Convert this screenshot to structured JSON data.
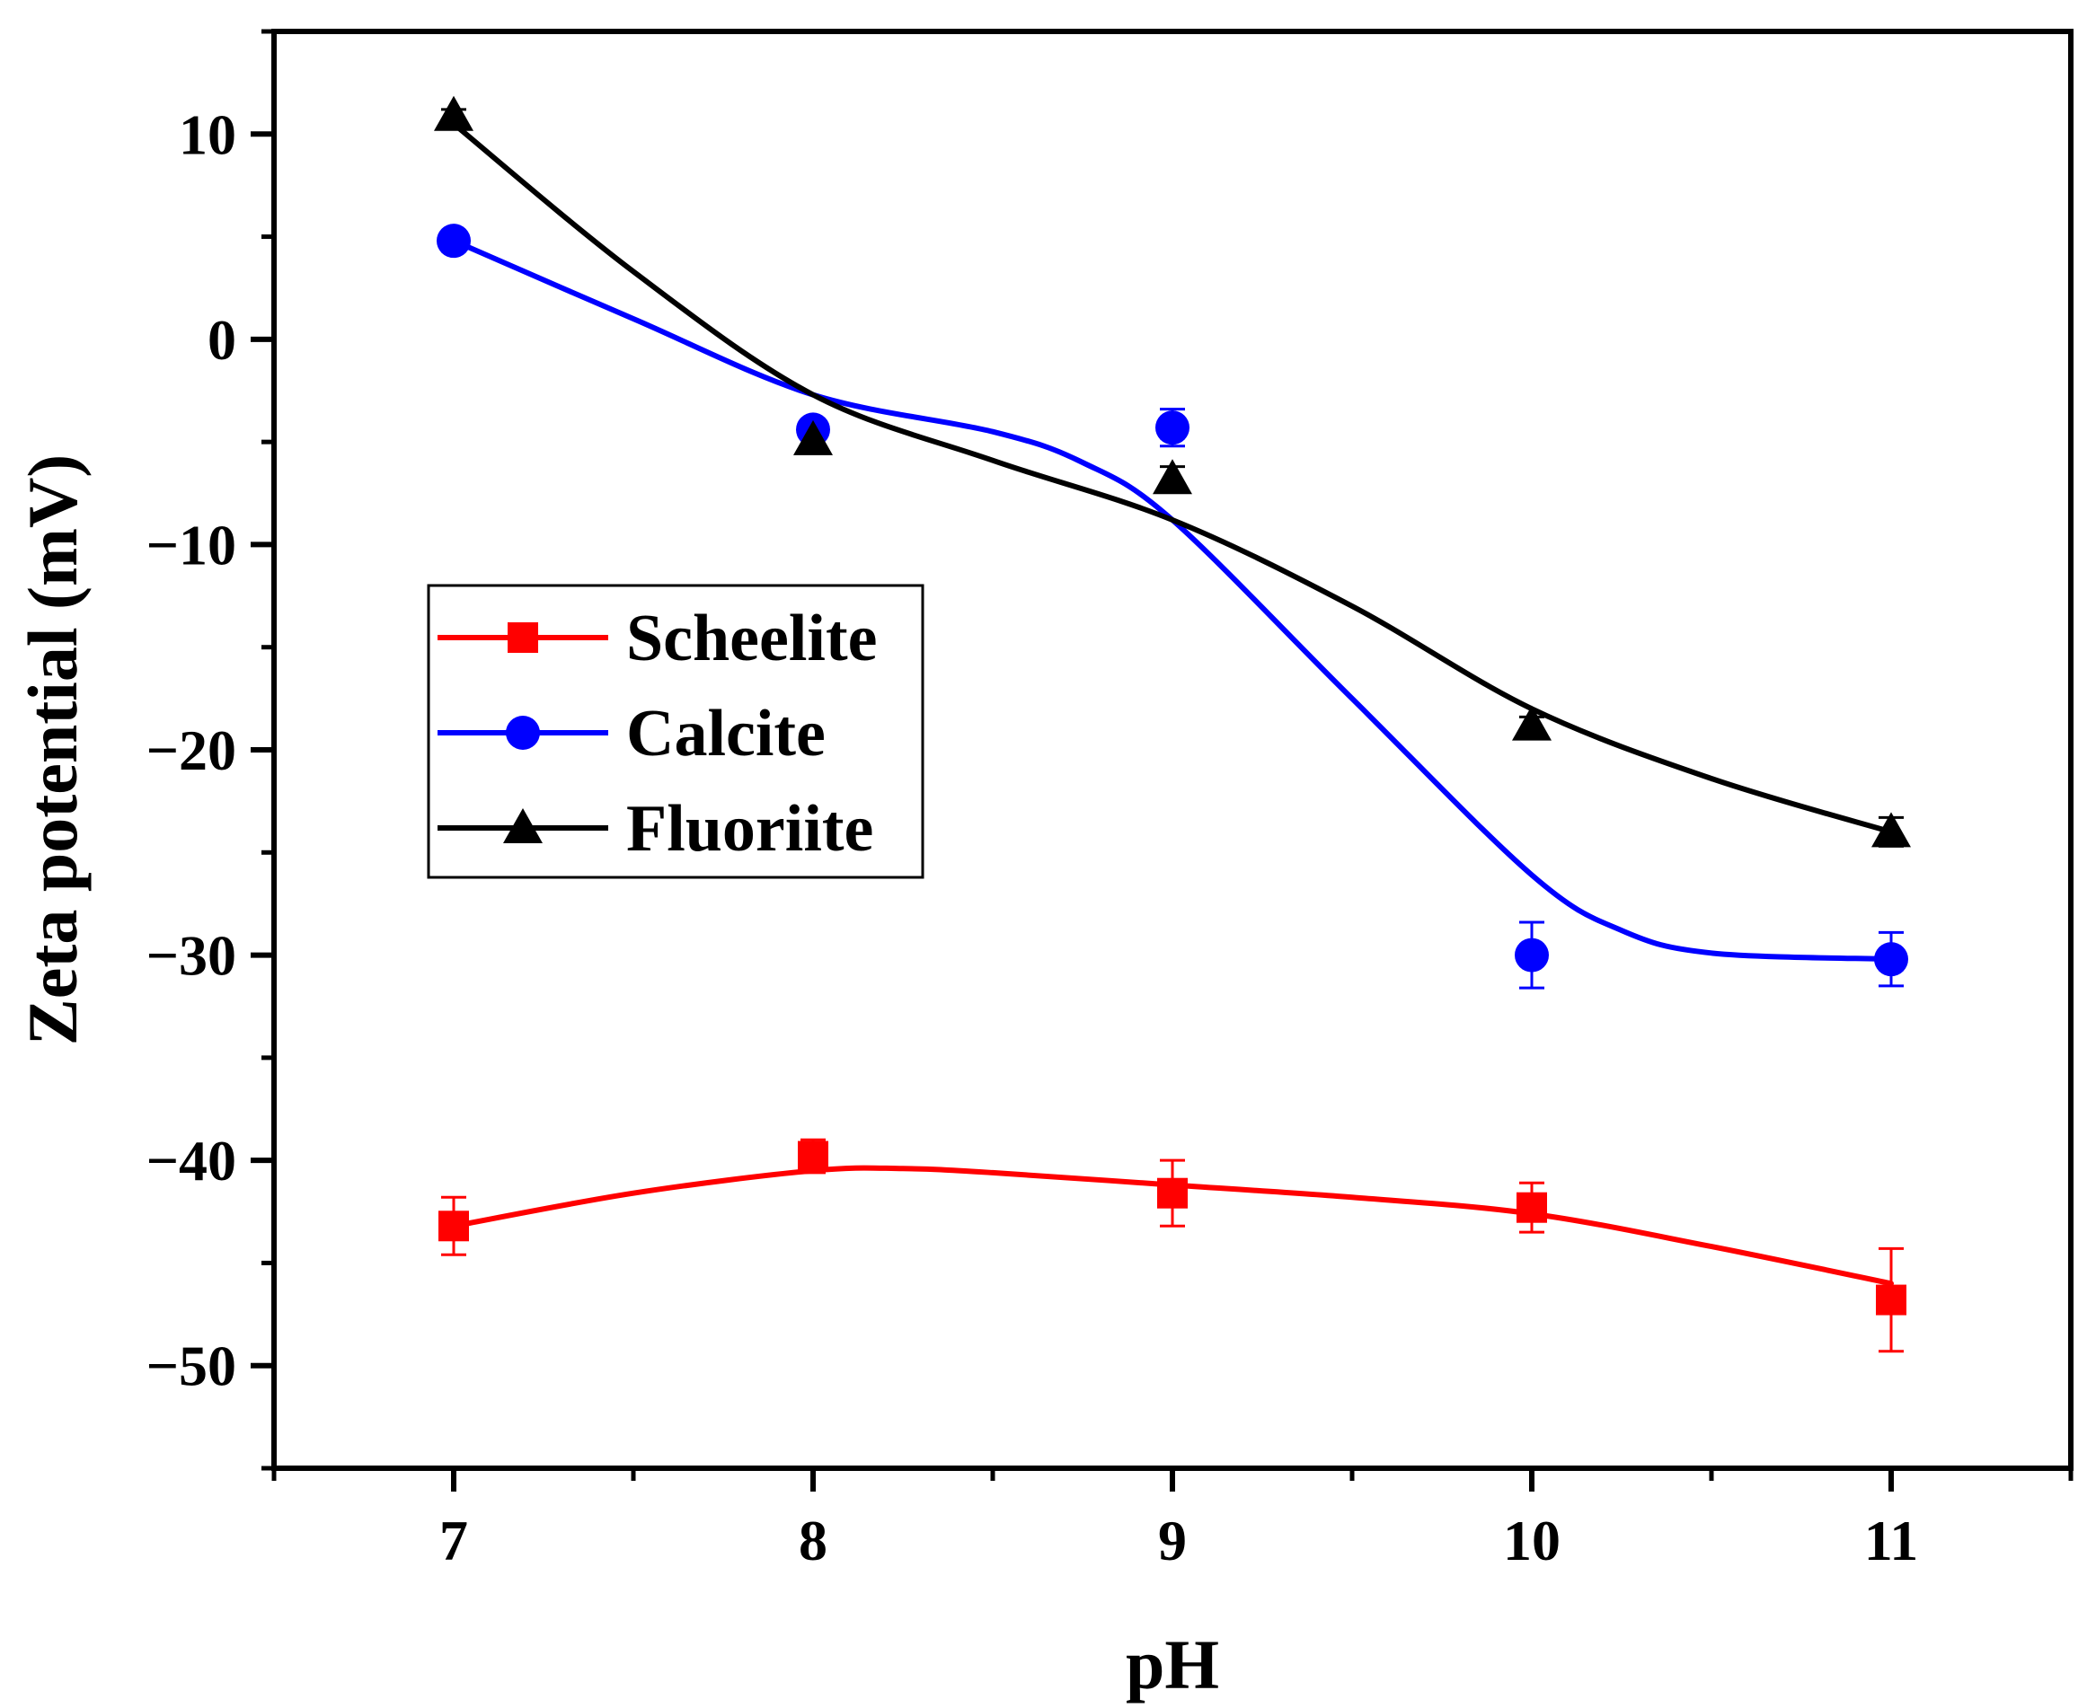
{
  "chart_data": {
    "type": "line",
    "title": "",
    "xlabel": "pH",
    "ylabel": "Zeta potential (mV)",
    "xlim": [
      6.5,
      11.5
    ],
    "ylim": [
      -55,
      15
    ],
    "xticks": [
      7,
      8,
      9,
      10,
      11
    ],
    "xtick_labels": [
      "7",
      "8",
      "9",
      "10",
      "11"
    ],
    "yticks": [
      10,
      0,
      -10,
      -20,
      -30,
      -40,
      -50
    ],
    "ytick_labels": [
      "10",
      "0",
      "−10",
      "−20",
      "−30",
      "−40",
      "−50"
    ],
    "grid": false,
    "legend_position": "center-left",
    "series": [
      {
        "name": "Scheelite",
        "color": "#ff0000",
        "marker": "square",
        "x": [
          7,
          8,
          9,
          10,
          11
        ],
        "values": [
          -43.2,
          -39.8,
          -41.6,
          -42.3,
          -46.8
        ],
        "errors": [
          1.4,
          0.8,
          1.6,
          1.2,
          2.5
        ],
        "fit_curve": [
          [
            7,
            -43.2
          ],
          [
            7.5,
            -41.6
          ],
          [
            8,
            -40.5
          ],
          [
            8.25,
            -40.4
          ],
          [
            8.5,
            -40.6
          ],
          [
            9,
            -41.2
          ],
          [
            9.5,
            -41.8
          ],
          [
            10,
            -42.6
          ],
          [
            10.5,
            -44.2
          ],
          [
            11,
            -46.0
          ]
        ]
      },
      {
        "name": "Calcite",
        "color": "#0000ff",
        "marker": "circle",
        "x": [
          7,
          8,
          9,
          10,
          11
        ],
        "values": [
          4.8,
          -4.4,
          -4.3,
          -30.0,
          -30.2
        ],
        "errors": [
          0.3,
          0.4,
          0.9,
          1.6,
          1.3
        ],
        "fit_curve": [
          [
            7,
            4.8
          ],
          [
            7.5,
            1.0
          ],
          [
            8,
            -2.7
          ],
          [
            8.5,
            -4.5
          ],
          [
            8.75,
            -6.0
          ],
          [
            9,
            -8.8
          ],
          [
            9.5,
            -17.5
          ],
          [
            10,
            -26.1
          ],
          [
            10.25,
            -28.8
          ],
          [
            10.5,
            -29.9
          ],
          [
            11,
            -30.2
          ]
        ]
      },
      {
        "name": "Fluoriite",
        "color": "#000000",
        "marker": "triangle",
        "x": [
          7,
          8,
          9,
          10,
          11
        ],
        "values": [
          10.9,
          -4.9,
          -6.8,
          -18.8,
          -24.0
        ],
        "errors": [
          0.3,
          0.5,
          0.6,
          0.4,
          0.7
        ],
        "fit_curve": [
          [
            7,
            10.5
          ],
          [
            7.5,
            3.3
          ],
          [
            8,
            -2.7
          ],
          [
            8.5,
            -5.9
          ],
          [
            9,
            -8.8
          ],
          [
            9.5,
            -13.0
          ],
          [
            10,
            -18.0
          ],
          [
            10.5,
            -21.4
          ],
          [
            11,
            -24.0
          ]
        ]
      }
    ]
  }
}
